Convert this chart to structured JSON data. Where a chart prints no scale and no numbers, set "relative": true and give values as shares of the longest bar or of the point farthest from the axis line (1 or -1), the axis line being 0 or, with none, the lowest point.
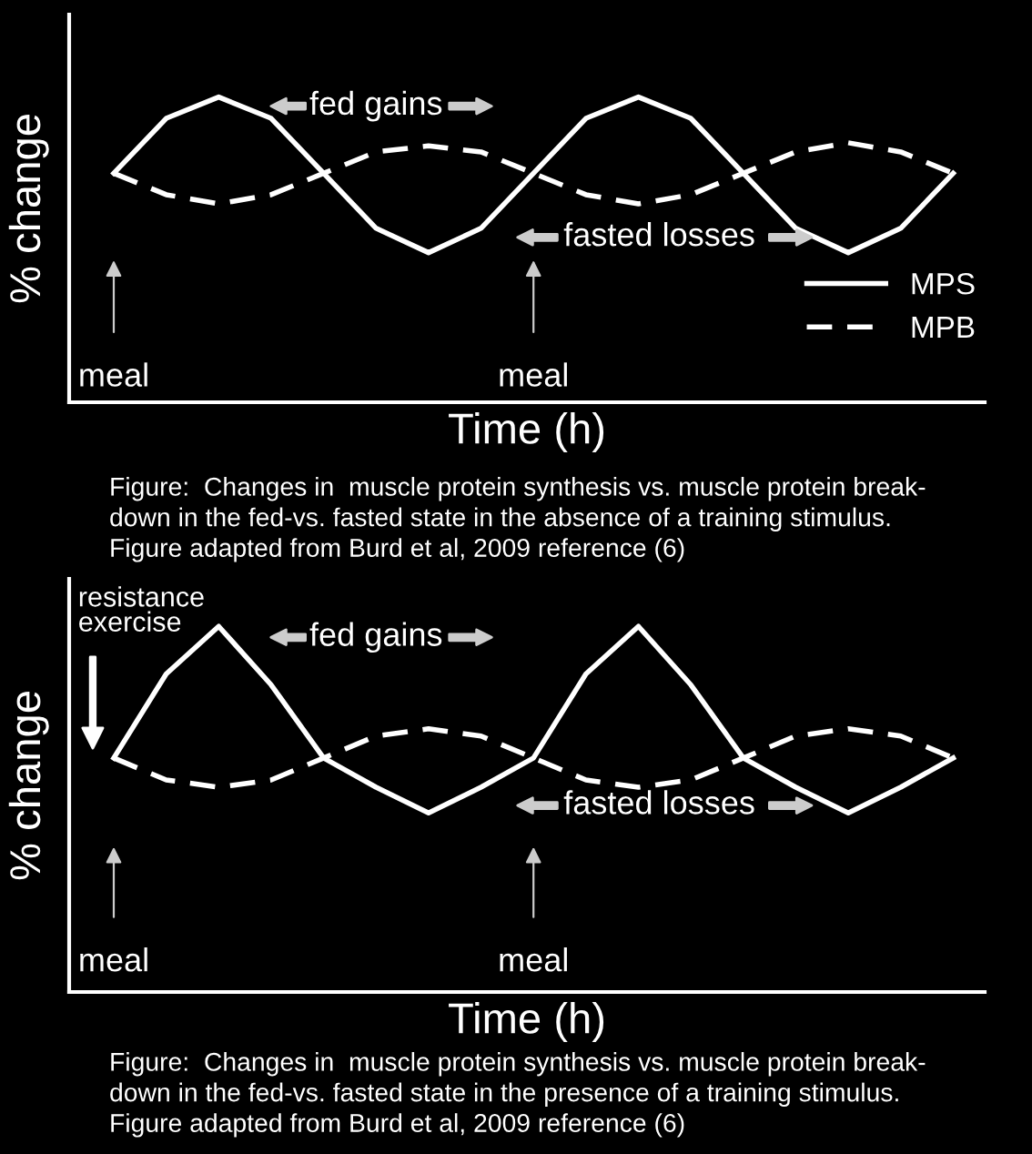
{
  "chart_data": [
    {
      "type": "line",
      "relative": true,
      "xlabel": "Time (h)",
      "ylabel": "% change",
      "legend": "bottom right",
      "categories": [
        null,
        null,
        null,
        null,
        null,
        null,
        null,
        null,
        null,
        null,
        null,
        null,
        null,
        null,
        null,
        null,
        null
      ],
      "series": [
        {
          "name": "MPS",
          "color": "#ffffff",
          "line_style": "solid",
          "values": [
            0.75,
            0.93,
            1,
            0.93,
            0.75,
            0.57,
            0.49,
            0.57,
            0.75,
            0.93,
            1,
            0.93,
            0.75,
            0.57,
            0.49,
            0.57,
            0.75
          ]
        },
        {
          "name": "MPB",
          "color": "#ffffff",
          "line_style": "dashed",
          "values": [
            0.75,
            0.68,
            0.65,
            0.68,
            0.75,
            0.82,
            0.84,
            0.82,
            0.75,
            0.68,
            0.65,
            0.68,
            0.75,
            0.82,
            0.85,
            0.82,
            0.75
          ]
        }
      ],
      "annotations": [
        "fed gains",
        "fasted losses",
        "meal",
        "meal",
        "Figure:  Changes in  muscle protein synthesis vs. muscle protein break-\ndown in the fed-vs. fasted state in the absence of a training stimulus.\nFigure adapted from Burd et al, 2009 reference (6)"
      ]
    },
    {
      "type": "line",
      "relative": true,
      "xlabel": "Time (h)",
      "ylabel": "% change",
      "categories": [
        null,
        null,
        null,
        null,
        null,
        null,
        null,
        null,
        null,
        null,
        null,
        null,
        null,
        null,
        null,
        null,
        null
      ],
      "series": [
        {
          "color": "#ffffff",
          "line_style": "solid",
          "values": [
            0.64,
            0.87,
            1,
            0.84,
            0.64,
            0.56,
            0.49,
            0.56,
            0.64,
            0.87,
            1,
            0.84,
            0.64,
            0.56,
            0.49,
            0.56,
            0.64
          ]
        },
        {
          "color": "#ffffff",
          "line_style": "dashed",
          "values": [
            0.64,
            0.58,
            0.56,
            0.58,
            0.64,
            0.7,
            0.72,
            0.7,
            0.64,
            0.58,
            0.56,
            0.58,
            0.64,
            0.7,
            0.72,
            0.7,
            0.64
          ]
        }
      ],
      "annotations": [
        "fed gains",
        "fasted losses",
        "meal",
        "meal",
        "resistance exercise",
        "Figure:  Changes in  muscle protein synthesis vs. muscle protein break-\ndown in the fed-vs. fasted state in the presence of a training stimulus.\nFigure adapted from Burd et al, 2009 reference (6)"
      ]
    }
  ]
}
